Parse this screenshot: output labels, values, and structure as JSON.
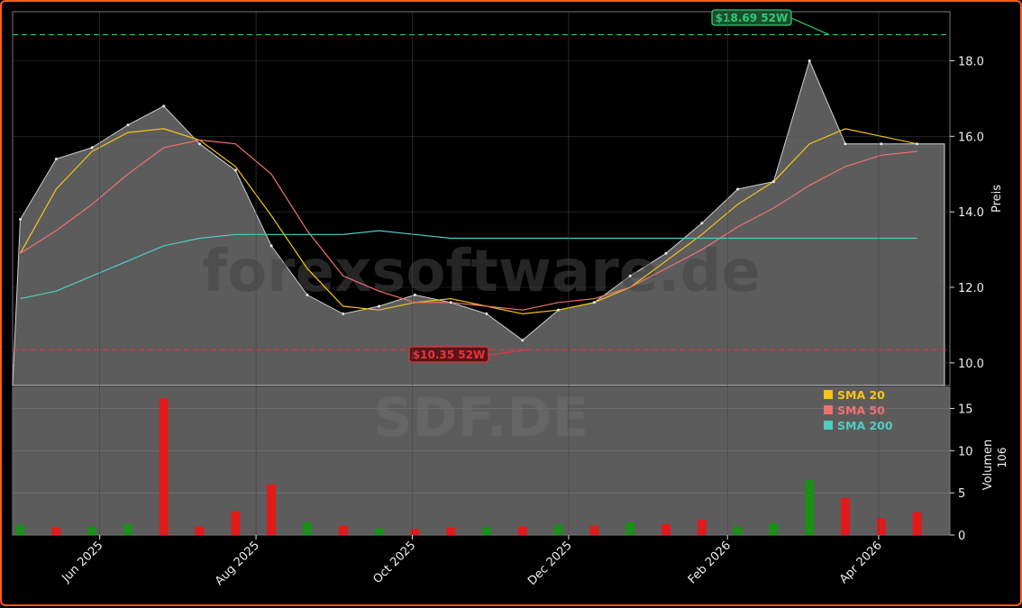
{
  "chart_data": [
    {
      "panel": "price",
      "type": "line",
      "ylabel": "Preis",
      "ylim": [
        9.4,
        19.3
      ],
      "yticks": [
        10.0,
        12.0,
        14.0,
        16.0,
        18.0
      ],
      "grid": true,
      "watermark": "forexsoftware.de",
      "high_52w": {
        "value": 18.69,
        "label": "$18.69 52W",
        "color": "#2ecc71"
      },
      "low_52w": {
        "value": 10.35,
        "label": "$10.35 52W",
        "color": "#e0383e"
      },
      "series": [
        {
          "name": "Close",
          "color": "#cfcfcf",
          "x": [
            "2025-05-01",
            "2025-05-15",
            "2025-05-29",
            "2025-06-12",
            "2025-06-26",
            "2025-07-10",
            "2025-07-24",
            "2025-08-07",
            "2025-08-21",
            "2025-09-04",
            "2025-09-18",
            "2025-10-02",
            "2025-10-16",
            "2025-10-30",
            "2025-11-13",
            "2025-11-27",
            "2025-12-11",
            "2025-12-25",
            "2026-01-08",
            "2026-01-22",
            "2026-02-05",
            "2026-02-19",
            "2026-03-05",
            "2026-03-19",
            "2026-04-02",
            "2026-04-16"
          ],
          "values": [
            13.8,
            15.4,
            15.7,
            16.3,
            16.8,
            15.8,
            15.1,
            13.1,
            11.8,
            11.3,
            11.5,
            11.8,
            11.6,
            11.3,
            10.6,
            11.4,
            11.6,
            12.3,
            12.9,
            13.7,
            14.6,
            14.8,
            18.0,
            15.8,
            15.8,
            15.8
          ]
        },
        {
          "name": "SMA 20",
          "color": "#f5c518",
          "values": [
            12.9,
            14.6,
            15.6,
            16.1,
            16.2,
            15.9,
            15.2,
            13.9,
            12.5,
            11.5,
            11.4,
            11.6,
            11.7,
            11.5,
            11.3,
            11.4,
            11.6,
            12.0,
            12.7,
            13.4,
            14.2,
            14.8,
            15.8,
            16.2,
            16.0,
            15.8
          ]
        },
        {
          "name": "SMA 50",
          "color": "#f07070",
          "values": [
            12.9,
            13.5,
            14.2,
            15.0,
            15.7,
            15.9,
            15.8,
            15.0,
            13.5,
            12.3,
            11.9,
            11.6,
            11.6,
            11.5,
            11.4,
            11.6,
            11.7,
            12.0,
            12.5,
            13.0,
            13.6,
            14.1,
            14.7,
            15.2,
            15.5,
            15.6
          ]
        },
        {
          "name": "SMA 200",
          "color": "#4ecdc4",
          "values": [
            11.7,
            11.9,
            12.3,
            12.7,
            13.1,
            13.3,
            13.4,
            13.4,
            13.4,
            13.4,
            13.5,
            13.4,
            13.3,
            13.3,
            13.3,
            13.3,
            13.3,
            13.3,
            13.3,
            13.3,
            13.3,
            13.3,
            13.3,
            13.3,
            13.3,
            13.3
          ]
        }
      ]
    },
    {
      "panel": "volume",
      "type": "bar",
      "ylabel": "Volumen",
      "yunit": "10^6",
      "ylim": [
        0,
        17.5
      ],
      "yticks": [
        0,
        5,
        10,
        15
      ],
      "grid": true,
      "watermark": "SDF.DE",
      "x": [
        "2025-05-01",
        "2025-05-15",
        "2025-05-29",
        "2025-06-12",
        "2025-06-26",
        "2025-07-10",
        "2025-07-24",
        "2025-08-07",
        "2025-08-21",
        "2025-09-04",
        "2025-09-18",
        "2025-10-02",
        "2025-10-16",
        "2025-10-30",
        "2025-11-13",
        "2025-11-27",
        "2025-12-11",
        "2025-12-25",
        "2026-01-08",
        "2026-01-22",
        "2026-02-05",
        "2026-02-19",
        "2026-03-05",
        "2026-03-19",
        "2026-04-02",
        "2026-04-16"
      ],
      "values": [
        1.2,
        0.9,
        1.0,
        1.3,
        16.2,
        1.0,
        2.8,
        6.0,
        1.5,
        1.1,
        0.8,
        0.7,
        0.9,
        0.9,
        1.0,
        1.2,
        1.1,
        1.5,
        1.3,
        1.8,
        1.0,
        1.4,
        6.5,
        4.4,
        2.0,
        2.7
      ],
      "up": [
        true,
        false,
        true,
        true,
        false,
        false,
        false,
        false,
        true,
        false,
        true,
        false,
        false,
        true,
        false,
        true,
        false,
        true,
        false,
        false,
        true,
        true,
        true,
        false,
        false,
        false
      ]
    }
  ],
  "x_axis": {
    "ticks": [
      "Jun 2025",
      "Aug 2025",
      "Oct 2025",
      "Dec 2025",
      "Feb 2026",
      "Apr 2026"
    ]
  },
  "legend": {
    "placement": "top-right of volume panel",
    "items": [
      {
        "label": "SMA 20",
        "color": "#f5c518"
      },
      {
        "label": "SMA 50",
        "color": "#f07070"
      },
      {
        "label": "SMA 200",
        "color": "#4ecdc4"
      }
    ]
  },
  "colors": {
    "frame": "#ff5a1f",
    "up": "#1a8f1a",
    "down": "#e31a1a",
    "area": "#5c5c5c"
  }
}
